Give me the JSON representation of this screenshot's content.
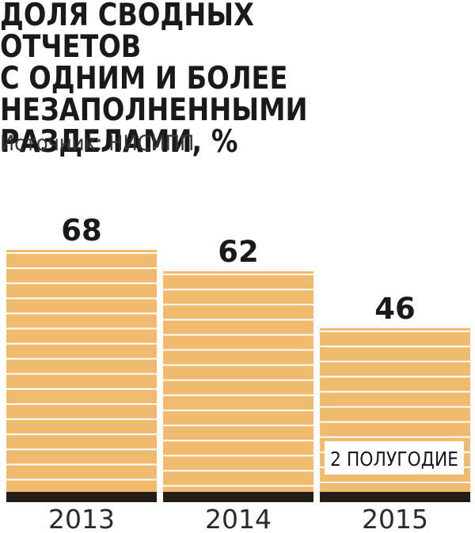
{
  "title": "ДОЛЯ СВОДНЫХ ОТЧЕТОВ\nС ОДНИМ И БОЛЕЕ\nНЕЗАПОЛНЕННЫМИ\nРАЗДЕЛАМИ, %",
  "source": "Источник: НИСИПП",
  "colors": {
    "bar": "#f0bb6e",
    "stripe": "#ffffff",
    "base": "#231d16",
    "text": "#1a1a1a",
    "note_bg": "#ffffff"
  },
  "chart_data": {
    "type": "bar",
    "title": "ДОЛЯ СВОДНЫХ ОТЧЕТОВ С ОДНИМ И БОЛЕЕ НЕЗАПОЛНЕННЫМИ РАЗДЕЛАМИ, %",
    "categories": [
      "2013",
      "2014",
      "2015"
    ],
    "values": [
      68,
      62,
      46
    ],
    "value_labels": [
      "68",
      "62",
      "46"
    ],
    "annotations": [
      {
        "category": "2015",
        "text": "2 ПОЛУГОДИЕ"
      }
    ],
    "xlabel": "",
    "ylabel": "",
    "ylim": [
      0,
      68
    ],
    "grid": false,
    "legend": "none"
  }
}
